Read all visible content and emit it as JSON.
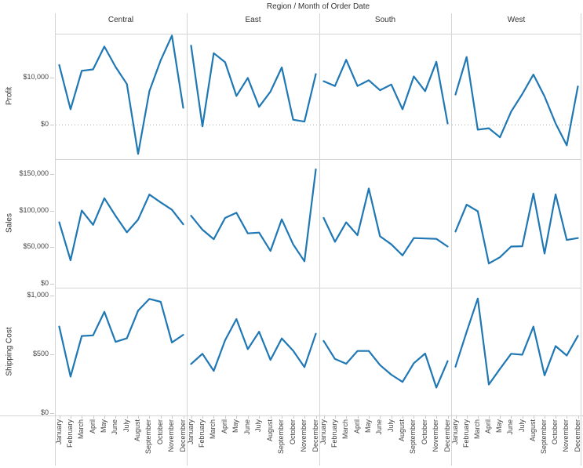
{
  "title": "Region / Month of Order Date",
  "colors": {
    "line": "#1f77b4",
    "panel_border": "#d4d4d4",
    "zero_line": "#b3b3b3",
    "tick": "#c9c9c9",
    "text": "#333333",
    "tick_text": "#444444"
  },
  "chart_data": {
    "type": "line",
    "title": "Region / Month of Order Date",
    "legend": "none",
    "grid": "off",
    "categories": [
      "January",
      "February",
      "March",
      "April",
      "May",
      "June",
      "July",
      "August",
      "September",
      "October",
      "November",
      "December"
    ],
    "facets": {
      "columns": [
        "Central",
        "East",
        "South",
        "West"
      ],
      "rows": [
        "Profit",
        "Sales",
        "Shipping Cost"
      ]
    },
    "rows": [
      {
        "measure": "Profit",
        "ylabel": "Profit",
        "ylim": [
          -7200,
          19200
        ],
        "yticks": [
          {
            "value": 0,
            "label": "$0"
          },
          {
            "value": 10000,
            "label": "$10,000"
          }
        ],
        "zero_line": true,
        "series": [
          {
            "name": "Central",
            "values": [
              12600,
              3300,
              11400,
              11700,
              16500,
              12200,
              8600,
              -6100,
              7100,
              13600,
              18800,
              3600
            ]
          },
          {
            "name": "East",
            "values": [
              16700,
              -300,
              15100,
              13200,
              6100,
              9900,
              3800,
              7000,
              12100,
              1100,
              700,
              10700
            ]
          },
          {
            "name": "South",
            "values": [
              9200,
              8200,
              13700,
              8200,
              9400,
              7300,
              8500,
              3300,
              10200,
              7100,
              13300,
              300
            ]
          },
          {
            "name": "West",
            "values": [
              6400,
              14300,
              -1000,
              -700,
              -2600,
              2800,
              6500,
              10600,
              6000,
              300,
              -4300,
              8100
            ]
          }
        ]
      },
      {
        "measure": "Sales",
        "ylabel": "Sales",
        "ylim": [
          -5000,
          170000
        ],
        "yticks": [
          {
            "value": 0,
            "label": "$0"
          },
          {
            "value": 50000,
            "label": "$50,000"
          },
          {
            "value": 100000,
            "label": "$100,000"
          },
          {
            "value": 150000,
            "label": "$150,000"
          }
        ],
        "zero_line": false,
        "series": [
          {
            "name": "Central",
            "values": [
              84000,
              32400,
              100000,
              80600,
              116700,
              92700,
              70300,
              87700,
              121800,
              111100,
              101100,
              81300
            ]
          },
          {
            "name": "East",
            "values": [
              93000,
              74000,
              61000,
              90000,
              97000,
              69000,
              70000,
              45000,
              88000,
              54000,
              31000,
              156000
            ]
          },
          {
            "name": "South",
            "values": [
              90000,
              57500,
              84000,
              66500,
              130000,
              65000,
              54000,
              39000,
              62500,
              62000,
              61500,
              51000
            ]
          },
          {
            "name": "West",
            "values": [
              71500,
              108000,
              99000,
              28000,
              36500,
              51000,
              51500,
              123000,
              41500,
              122000,
              60000,
              62500
            ]
          }
        ]
      },
      {
        "measure": "Shipping Cost",
        "ylabel": "Shipping Cost",
        "ylim": [
          -20,
          1065
        ],
        "yticks": [
          {
            "value": 0,
            "label": "$0"
          },
          {
            "value": 500,
            "label": "$500"
          },
          {
            "value": 1000,
            "label": "$1,000"
          }
        ],
        "zero_line": false,
        "series": [
          {
            "name": "Central",
            "values": [
              735,
              310,
              655,
              660,
              860,
              605,
              635,
              870,
              970,
              945,
              600,
              665
            ]
          },
          {
            "name": "East",
            "values": [
              417,
              504,
              359,
              619,
              799,
              543,
              691,
              452,
              634,
              530,
              391,
              674
            ]
          },
          {
            "name": "South",
            "values": [
              613,
              460,
              419,
              528,
              528,
              408,
              326,
              265,
              424,
              506,
              217,
              441
            ]
          },
          {
            "name": "West",
            "values": [
              395,
              690,
              973,
              243,
              376,
              504,
              496,
              734,
              321,
              569,
              489,
              656
            ]
          }
        ]
      }
    ]
  }
}
